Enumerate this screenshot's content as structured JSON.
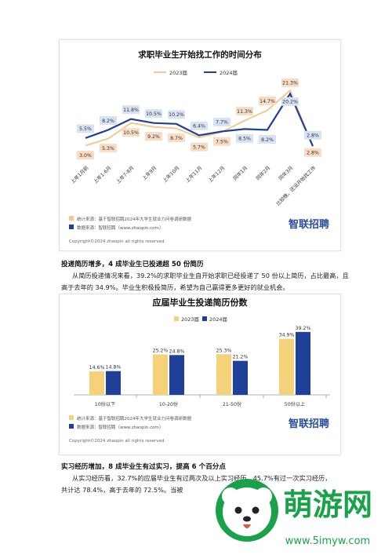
{
  "chart_data": [
    {
      "type": "line",
      "title": "求职毕业生开始找工作的时间分布",
      "categories": [
        "上年1月前",
        "上年1-6月",
        "上年7-8月",
        "上年9月",
        "上年10月",
        "上年11月",
        "上年12月",
        "同年1月",
        "同年2月",
        "同年3月",
        "比较晚，还没开始找工作"
      ],
      "series": [
        {
          "name": "2023届",
          "color": "#f2c98f",
          "values": [
            3.0,
            5.3,
            10.5,
            9.2,
            8.7,
            5.7,
            7.5,
            11.3,
            14.7,
            21.3,
            2.8
          ]
        },
        {
          "name": "2024届",
          "color": "#1f3f99",
          "values": [
            5.5,
            8.2,
            11.8,
            10.5,
            10.2,
            6.4,
            7.7,
            8.5,
            8.2,
            20.2,
            2.8
          ]
        }
      ],
      "value_labels": {
        "2023届": [
          "3.0%",
          "5.3%",
          "10.5%",
          "9.2%",
          "8.7%",
          "5.7%",
          "7.5%",
          "11.3%",
          "14.7%",
          "21.3%",
          "2.8%"
        ],
        "2024届": [
          "5.5%",
          "8.2%",
          "11.8%",
          "10.5%",
          "10.2%",
          "6.4%",
          "7.7%",
          "8.5%",
          "8.2%",
          "20.2%",
          "2.8%"
        ]
      },
      "legend_placement": "top-center",
      "grid": false,
      "ylim": [
        0,
        25
      ],
      "source_lines": [
        "统计来源：基于智联招聘2024年大学生就业力问卷调研数据",
        "数据来源：智联招聘（www.zhaopin.com）"
      ],
      "copyright": "Copyright©2024 zhaopin all rights reserved",
      "brand": "智联招聘"
    },
    {
      "type": "bar",
      "title": "应届毕业生投递简历份数",
      "categories": [
        "10份以下",
        "10-20份",
        "21-50份",
        "50份以上"
      ],
      "series": [
        {
          "name": "2023届",
          "color": "#f5d27a",
          "values": [
            14.6,
            25.2,
            25.3,
            34.9
          ]
        },
        {
          "name": "2024届",
          "color": "#1f3f99",
          "values": [
            14.8,
            24.8,
            21.2,
            39.2
          ]
        }
      ],
      "value_labels": {
        "2023届": [
          "14.6%",
          "25.2%",
          "25.3%",
          "34.9%"
        ],
        "2024届": [
          "14.8%",
          "24.8%",
          "21.2%",
          "39.2%"
        ]
      },
      "legend_placement": "top-right",
      "grid": false,
      "ylim": [
        0,
        45
      ],
      "source_lines": [
        "统计来源：基于智联招聘2024年大学生就业力问卷调研数据",
        "数据来源：智联招聘（www.zhaopin.com）"
      ],
      "copyright": "Copyright©2024 zhaopin all rights reserved",
      "brand": "智联招聘"
    }
  ],
  "section1": {
    "heading": "投递简历增多，4 成毕业生已投递超 50 份简历",
    "body": "从简历投递情况来看，39.2%的求职毕业生自开始求职已经投递了 50 份以上简历，占比最高，且高于去年的 34.9%。毕业生积极投简历，希望为自己赢得更多更好的就业机会。"
  },
  "section2": {
    "heading": "实习经历增加，8 成毕业生有过实习，提高 6 个百分点",
    "body": "从实习经历看，32.7%的应届毕业生有过两次及以上实习经历，45.7%有过一次实习经历，共计达 78.4%，高于去年的 72.5%。当被"
  },
  "watermark": {
    "name": "萌游网",
    "url": "www.5imyw.com",
    "accent": "#19a24a"
  }
}
